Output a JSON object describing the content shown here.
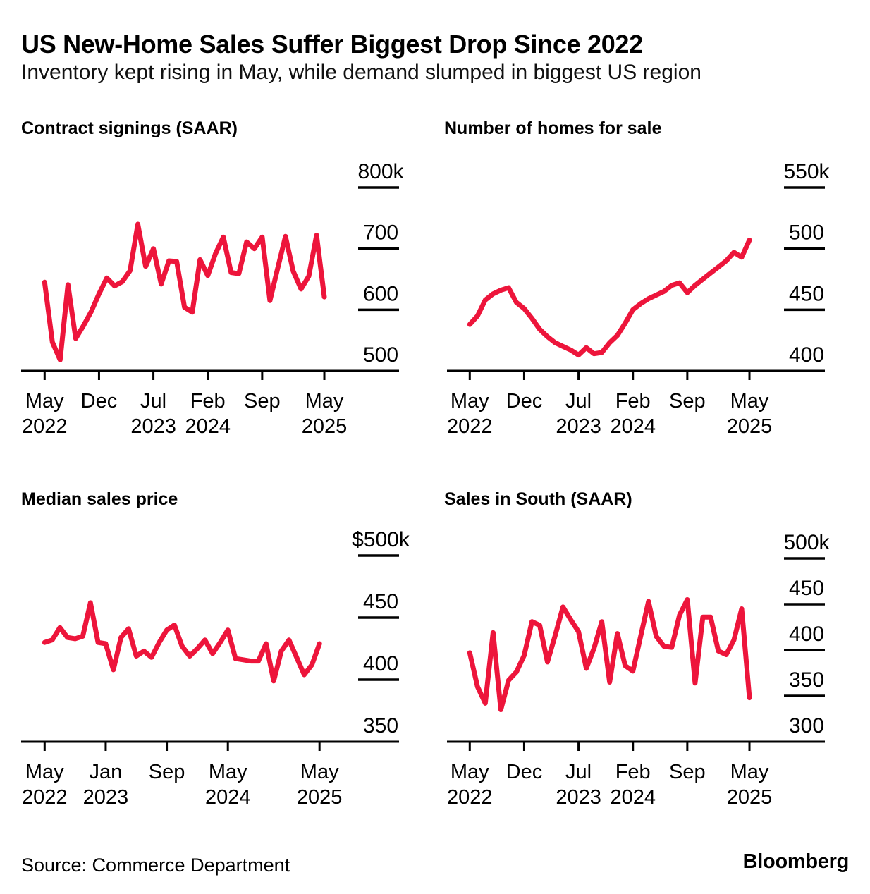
{
  "header": {
    "title": "US New-Home Sales Suffer Biggest Drop Since 2022",
    "subtitle": "Inventory kept rising in May, while demand slumped in biggest US region"
  },
  "footer": {
    "source": "Source: Commerce Department",
    "logo": "Bloomberg"
  },
  "accent_color": "#ED153B",
  "chart_data": [
    {
      "title": "Contract signings (SAAR)",
      "type": "line",
      "line_color": "#ED153B",
      "frequency": "monthly",
      "x_start": "May 2022",
      "x_end": "May 2025",
      "ylim": [
        500,
        800
      ],
      "unit": "thousands of homes, seasonally adjusted annual rate",
      "y_ticks": [
        {
          "label": "800k",
          "value": 800
        },
        {
          "label": "700",
          "value": 700
        },
        {
          "label": "600",
          "value": 600
        }
      ],
      "y_base_tick": {
        "label": "500",
        "value": 500
      },
      "x_ticks": [
        {
          "month_index": 0,
          "line1": "May",
          "line2": "2022"
        },
        {
          "month_index": 7,
          "line1": "Dec",
          "line2": ""
        },
        {
          "month_index": 14,
          "line1": "Jul",
          "line2": "2023"
        },
        {
          "month_index": 21,
          "line1": "Feb",
          "line2": "2024"
        },
        {
          "month_index": 28,
          "line1": "Sep",
          "line2": ""
        },
        {
          "month_index": 36,
          "line1": "May",
          "line2": "2025"
        }
      ],
      "values": [
        645,
        547,
        518,
        641,
        553,
        574,
        597,
        626,
        652,
        639,
        646,
        664,
        740,
        671,
        700,
        642,
        680,
        679,
        604,
        596,
        682,
        656,
        692,
        719,
        661,
        659,
        711,
        700,
        719,
        615,
        668,
        720,
        663,
        634,
        655,
        722,
        621
      ]
    },
    {
      "title": "Number of homes for sale",
      "type": "line",
      "line_color": "#ED153B",
      "frequency": "monthly",
      "x_start": "May 2022",
      "x_end": "May 2025",
      "ylim": [
        400,
        550
      ],
      "unit": "thousands of homes",
      "y_ticks": [
        {
          "label": "550k",
          "value": 550
        },
        {
          "label": "500",
          "value": 500
        },
        {
          "label": "450",
          "value": 450
        }
      ],
      "y_base_tick": {
        "label": "400",
        "value": 400
      },
      "x_ticks": [
        {
          "month_index": 0,
          "line1": "May",
          "line2": "2022"
        },
        {
          "month_index": 7,
          "line1": "Dec",
          "line2": ""
        },
        {
          "month_index": 14,
          "line1": "Jul",
          "line2": "2023"
        },
        {
          "month_index": 21,
          "line1": "Feb",
          "line2": "2024"
        },
        {
          "month_index": 28,
          "line1": "Sep",
          "line2": ""
        },
        {
          "month_index": 36,
          "line1": "May",
          "line2": "2025"
        }
      ],
      "values": [
        438,
        445,
        458,
        463,
        466,
        468,
        456,
        451,
        443,
        434,
        428,
        423,
        420,
        417,
        413,
        419,
        414,
        415,
        423,
        429,
        439,
        450,
        455,
        459,
        462,
        465,
        470,
        472,
        464,
        470,
        475,
        480,
        485,
        490,
        497,
        493,
        507
      ]
    },
    {
      "title": "Median sales price",
      "type": "line",
      "line_color": "#ED153B",
      "frequency": "monthly",
      "x_start": "May 2022",
      "x_end": "May 2025",
      "ylim": [
        350,
        500
      ],
      "unit": "thousands of US dollars",
      "y_ticks": [
        {
          "label": "$500k",
          "value": 500
        },
        {
          "label": "450",
          "value": 450
        },
        {
          "label": "400",
          "value": 400
        }
      ],
      "y_base_tick": {
        "label": "350",
        "value": 350
      },
      "x_ticks": [
        {
          "month_index": 0,
          "line1": "May",
          "line2": "2022"
        },
        {
          "month_index": 8,
          "line1": "Jan",
          "line2": "2023"
        },
        {
          "month_index": 16,
          "line1": "Sep",
          "line2": ""
        },
        {
          "month_index": 24,
          "line1": "May",
          "line2": "2024"
        },
        {
          "month_index": 36,
          "line1": "May",
          "line2": "2025"
        }
      ],
      "values": [
        430,
        432,
        442,
        434,
        433,
        435,
        462,
        430,
        429,
        408,
        434,
        441,
        419,
        423,
        418,
        430,
        440,
        444,
        427,
        419,
        425,
        432,
        421,
        430,
        440,
        417,
        416,
        415,
        415,
        429,
        399,
        423,
        432,
        418,
        404,
        412,
        429
      ]
    },
    {
      "title": "Sales in South (SAAR)",
      "type": "line",
      "line_color": "#ED153B",
      "frequency": "monthly",
      "x_start": "May 2022",
      "x_end": "May 2025",
      "ylim": [
        300,
        500
      ],
      "unit": "thousands of homes, seasonally adjusted annual rate",
      "y_ticks": [
        {
          "label": "500k",
          "value": 500
        },
        {
          "label": "450",
          "value": 450
        },
        {
          "label": "400",
          "value": 400
        },
        {
          "label": "350",
          "value": 350
        }
      ],
      "y_base_tick": {
        "label": "300",
        "value": 300
      },
      "x_ticks": [
        {
          "month_index": 0,
          "line1": "May",
          "line2": "2022"
        },
        {
          "month_index": 7,
          "line1": "Dec",
          "line2": ""
        },
        {
          "month_index": 14,
          "line1": "Jul",
          "line2": "2023"
        },
        {
          "month_index": 21,
          "line1": "Feb",
          "line2": "2024"
        },
        {
          "month_index": 28,
          "line1": "Sep",
          "line2": ""
        },
        {
          "month_index": 36,
          "line1": "May",
          "line2": "2025"
        }
      ],
      "values": [
        397,
        360,
        342,
        419,
        335,
        367,
        376,
        394,
        431,
        427,
        387,
        416,
        447,
        433,
        420,
        380,
        402,
        431,
        365,
        418,
        383,
        377,
        415,
        453,
        415,
        404,
        403,
        438,
        455,
        364,
        436,
        436,
        399,
        395,
        411,
        445,
        348
      ]
    }
  ]
}
